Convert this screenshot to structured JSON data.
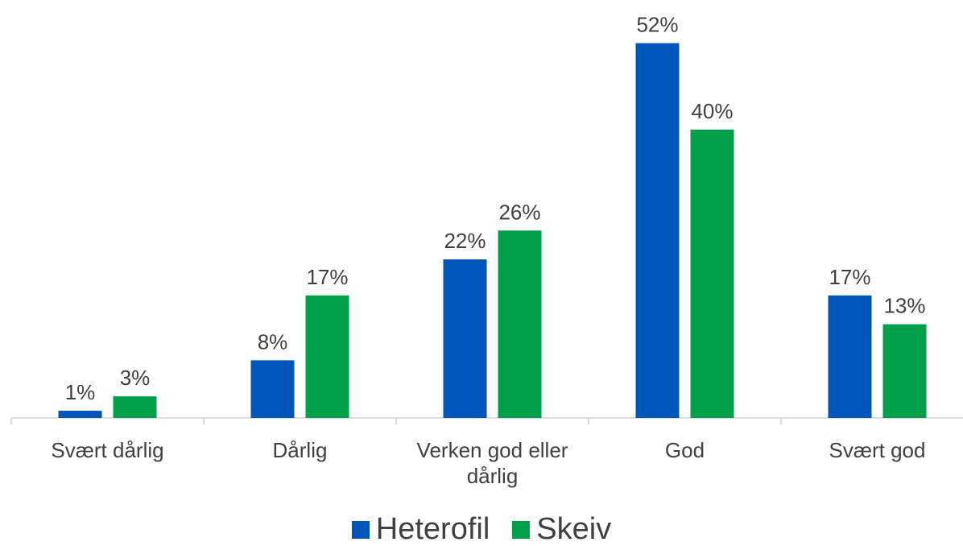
{
  "chart_data": {
    "type": "bar",
    "categories": [
      "Svært dårlig",
      "Dårlig",
      "Verken god eller dårlig",
      "God",
      "Svært god"
    ],
    "series": [
      {
        "name": "Heterofil",
        "color": "#0055b8",
        "values": [
          1,
          8,
          22,
          52,
          17
        ],
        "value_labels": [
          "1%",
          "8%",
          "22%",
          "52%",
          "17%"
        ]
      },
      {
        "name": "Skeiv",
        "color": "#00a04b",
        "values": [
          3,
          17,
          26,
          40,
          13
        ],
        "value_labels": [
          "3%",
          "17%",
          "26%",
          "40%",
          "13%"
        ]
      }
    ],
    "legend": "bottom"
  }
}
